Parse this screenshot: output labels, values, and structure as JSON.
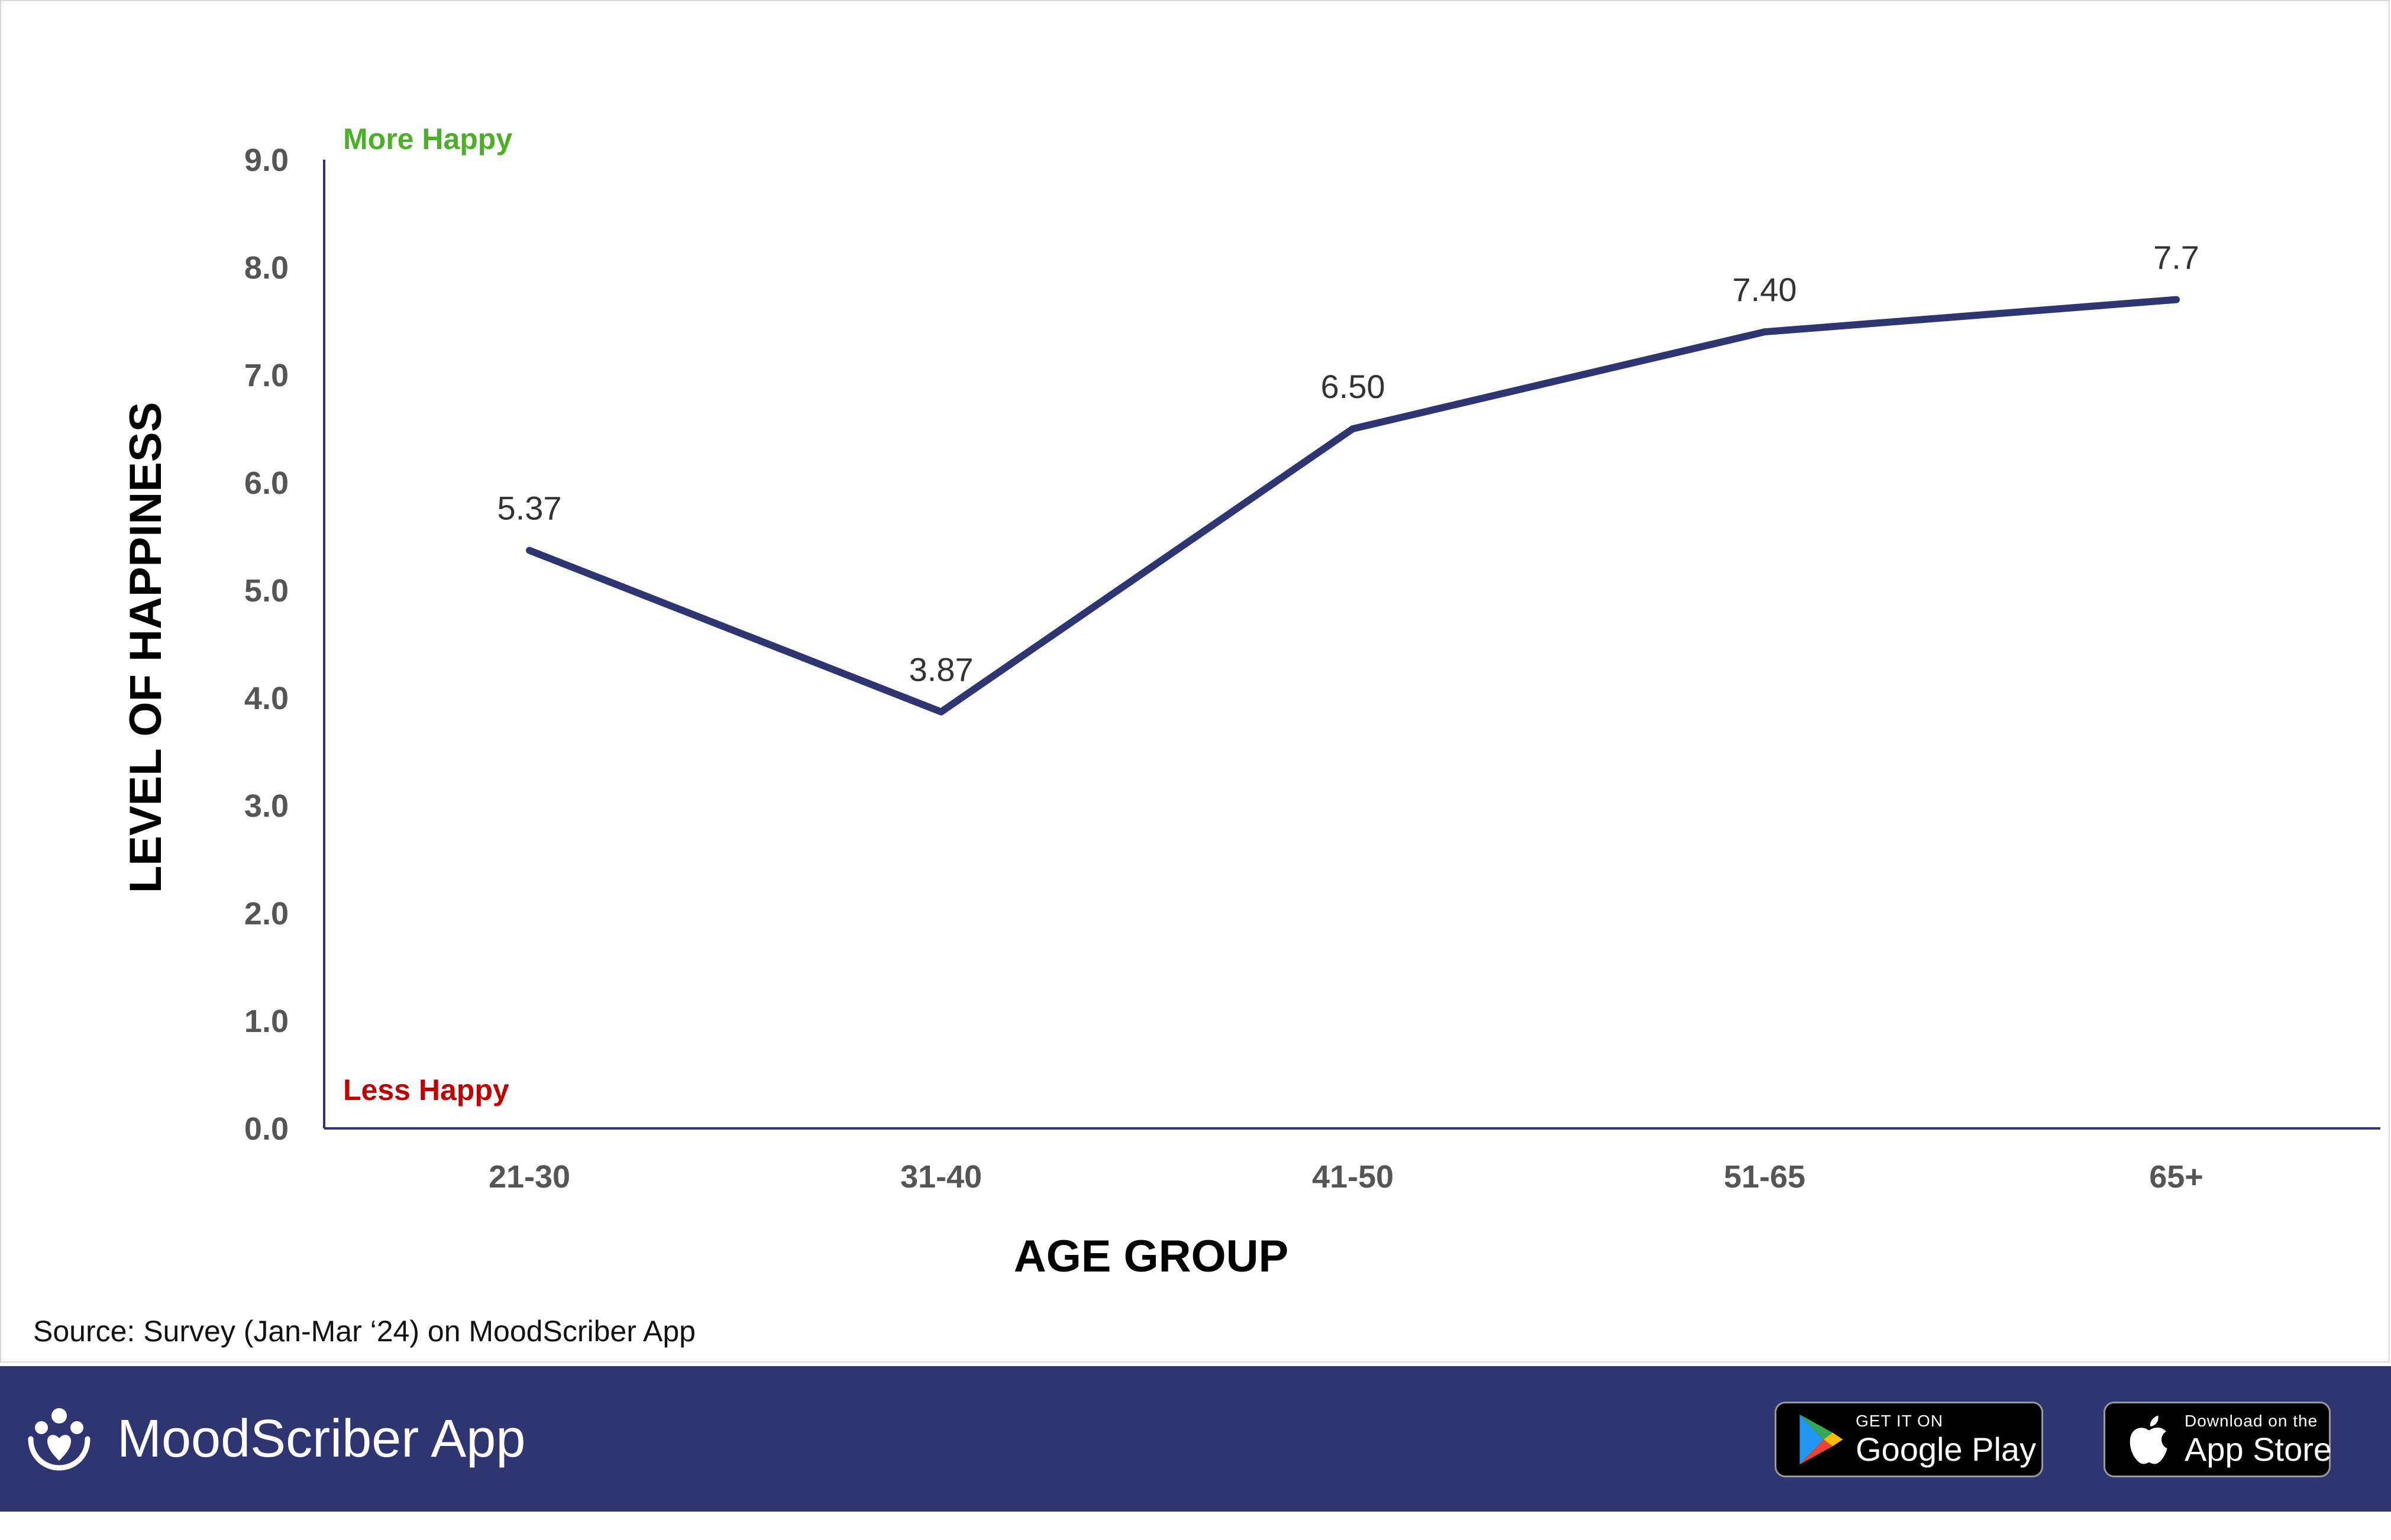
{
  "chart_data": {
    "type": "line",
    "categories": [
      "21-30",
      "31-40",
      "41-50",
      "51-65",
      "65+"
    ],
    "series": [
      {
        "values": [
          5.37,
          3.87,
          6.5,
          7.4,
          7.7
        ],
        "data_labels": [
          "5.37",
          "3.87",
          "6.50",
          "7.40",
          "7.7"
        ],
        "color": "#2e3571"
      }
    ],
    "xlabel": "AGE GROUP",
    "ylabel": "LEVEL OF HAPPINESS",
    "ylim": [
      0,
      9
    ],
    "yticks": [
      "0.0",
      "1.0",
      "2.0",
      "3.0",
      "4.0",
      "5.0",
      "6.0",
      "7.0",
      "8.0",
      "9.0"
    ],
    "annotations": {
      "top": {
        "text": "More Happy",
        "color": "#4caf28"
      },
      "bottom": {
        "text": "Less Happy",
        "color": "#c00000"
      }
    },
    "grid": false,
    "legend": "none"
  },
  "source_note": "Source: Survey (Jan-Mar ‘24) on MoodScriber App",
  "footer": {
    "brand_name": "MoodScriber App",
    "brand_icon": "people-heart-icon",
    "background": "#2e3571",
    "google_play": {
      "small": "GET IT ON",
      "large": "Google Play",
      "icon": "google-play-icon"
    },
    "app_store": {
      "small": "Download on the",
      "large": "App Store",
      "icon": "apple-icon"
    }
  }
}
